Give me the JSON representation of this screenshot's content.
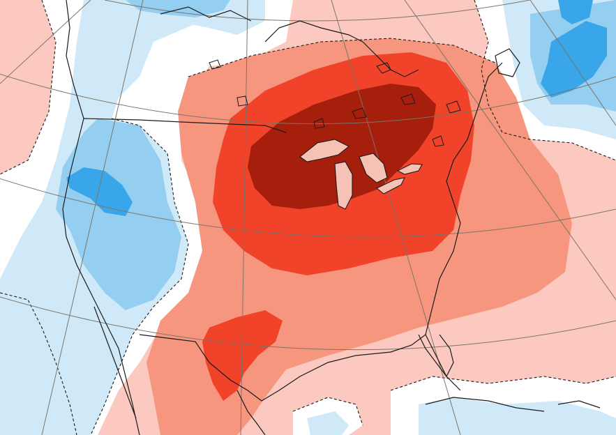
{
  "map": {
    "kind": "temperature anomaly map",
    "region": "North America",
    "palette": {
      "warm_dark": "#a61f0c",
      "warm_strong": "#f0432a",
      "warm_medium": "#f6967f",
      "warm_light": "#fbc9bf",
      "neutral": "#ffffff",
      "cool_light": "#cfe9f8",
      "cool_medium": "#94cef1",
      "cool_strong": "#3aa6ea",
      "coastline": "#1a1a1a",
      "graticule": "#7d7468"
    },
    "features": [
      "coastlines",
      "graticule",
      "dashed-anomaly-contours",
      "great-lakes"
    ]
  }
}
